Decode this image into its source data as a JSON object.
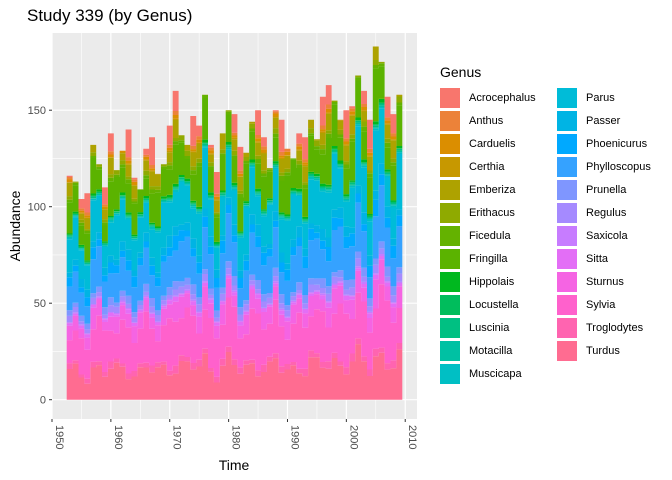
{
  "chart_data": {
    "type": "area",
    "stacked": true,
    "title": "Study 339 (by Genus)",
    "xlabel": "Time",
    "ylabel": "Abundance",
    "xlim": [
      1950,
      2012
    ],
    "ylim": [
      -10,
      190
    ],
    "x_ticks": [
      1950,
      1960,
      1970,
      1980,
      1990,
      2000,
      2010
    ],
    "y_ticks": [
      0,
      50,
      100,
      150
    ],
    "legend_title": "Genus",
    "legend_position": "right",
    "x": [
      1953,
      1954,
      1955,
      1956,
      1957,
      1958,
      1959,
      1960,
      1961,
      1962,
      1963,
      1964,
      1965,
      1966,
      1967,
      1968,
      1969,
      1970,
      1971,
      1972,
      1973,
      1974,
      1975,
      1976,
      1977,
      1978,
      1979,
      1980,
      1981,
      1982,
      1983,
      1984,
      1985,
      1986,
      1987,
      1988,
      1989,
      1990,
      1991,
      1992,
      1993,
      1994,
      1995,
      1996,
      1997,
      1998,
      1999,
      2000,
      2001,
      2002,
      2003,
      2004,
      2005,
      2006,
      2007,
      2008,
      2009
    ],
    "totals": [
      116,
      113,
      104,
      107,
      132,
      122,
      110,
      138,
      119,
      129,
      140,
      115,
      109,
      130,
      136,
      117,
      122,
      142,
      160,
      137,
      132,
      147,
      142,
      158,
      132,
      118,
      138,
      150,
      148,
      131,
      128,
      144,
      150,
      136,
      120,
      150,
      145,
      130,
      125,
      138,
      136,
      145,
      135,
      157,
      163,
      155,
      145,
      150,
      152,
      168,
      160,
      145,
      183,
      175,
      157,
      148,
      158
    ],
    "series": [
      {
        "name": "Acrocephalus",
        "color": "#F8766D",
        "share": 0.008
      },
      {
        "name": "Anthus",
        "color": "#EC8239",
        "share": 0.01
      },
      {
        "name": "Carduelis",
        "color": "#DB8E00",
        "share": 0.012
      },
      {
        "name": "Certhia",
        "color": "#C79800",
        "share": 0.004
      },
      {
        "name": "Emberiza",
        "color": "#AEA200",
        "share": 0.045
      },
      {
        "name": "Erithacus",
        "color": "#8FAA00",
        "share": 0.015
      },
      {
        "name": "Ficedula",
        "color": "#64B200",
        "share": 0.012
      },
      {
        "name": "Fringilla",
        "color": "#5BB300",
        "share": 0.11
      },
      {
        "name": "Hippolais",
        "color": "#00B81F",
        "share": 0.008
      },
      {
        "name": "Locustella",
        "color": "#00BD5C",
        "share": 0.003
      },
      {
        "name": "Luscinia",
        "color": "#00C082",
        "share": 0.005
      },
      {
        "name": "Motacilla",
        "color": "#00C1A3",
        "share": 0.004
      },
      {
        "name": "Muscicapa",
        "color": "#00BFC4",
        "share": 0.006
      },
      {
        "name": "Parus",
        "color": "#00BCD8",
        "share": 0.14
      },
      {
        "name": "Passer",
        "color": "#00B4E4",
        "share": 0.03
      },
      {
        "name": "Phoenicurus",
        "color": "#00A9FF",
        "share": 0.035
      },
      {
        "name": "Phylloscopus",
        "color": "#35A2FF",
        "share": 0.12
      },
      {
        "name": "Prunella",
        "color": "#7F96FF",
        "share": 0.025
      },
      {
        "name": "Regulus",
        "color": "#A58AFF",
        "share": 0.02
      },
      {
        "name": "Saxicola",
        "color": "#C77CFF",
        "share": 0.005
      },
      {
        "name": "Sitta",
        "color": "#E36EF6",
        "share": 0.012
      },
      {
        "name": "Sturnus",
        "color": "#F564E3",
        "share": 0.06
      },
      {
        "name": "Sylvia",
        "color": "#FF61CC",
        "share": 0.15
      },
      {
        "name": "Troglodytes",
        "color": "#FF64B0",
        "share": 0.02
      },
      {
        "name": "Turdus",
        "color": "#FF6C91",
        "share": 0.12
      }
    ]
  }
}
